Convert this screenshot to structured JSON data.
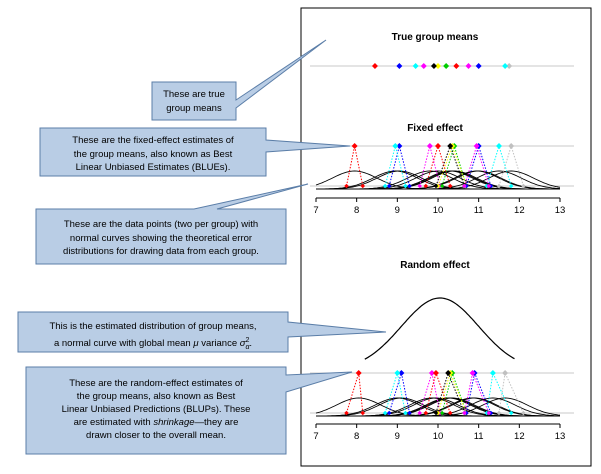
{
  "panels": {
    "true_title": "True group means",
    "fixed_title": "Fixed effect",
    "random_title": "Random effect"
  },
  "axis": {
    "min": 7,
    "max": 13,
    "ticks": [
      "7",
      "8",
      "9",
      "10",
      "11",
      "12",
      "13"
    ]
  },
  "colors": {
    "callout_fill": "#b9cde5",
    "callout_stroke": "#5b7ea8",
    "frame": "#000000",
    "baseline": "#c8c8c8"
  },
  "callouts": {
    "true_means": {
      "lines": [
        "These are true",
        "group means"
      ]
    },
    "blue": {
      "lines": [
        "These are the fixed-effect estimates of",
        "the group means, also known as Best",
        "Linear Unbiased Estimates (BLUEs)."
      ]
    },
    "data_points": {
      "lines": [
        "These are the data points (two per group) with",
        "normal curves showing the theoretical error",
        "distributions for drawing data from each group."
      ]
    },
    "global": {
      "line1": "This is the estimated distribution of group means,",
      "line2_prefix": "a normal curve with global mean ",
      "mu": "μ",
      "line2_mid": " variance ",
      "sigma": "σ",
      "sub": "α",
      "sup": "2",
      "line2_suffix": "."
    },
    "blup": {
      "line1": "These are the random-effect estimates of",
      "line2": "the group means, also known as Best",
      "line3": "Linear Unbiased Predictions (BLUPs). These",
      "line4_prefix": "are estimated with ",
      "shrinkage": "shrinkage",
      "line4_suffix": "—they are",
      "line5": "drawn closer to the overall mean."
    }
  },
  "groups": [
    {
      "color": "#ff0000",
      "true_mean": 8.45,
      "blue": 7.95,
      "blup": 8.05,
      "data": [
        7.75,
        8.15
      ]
    },
    {
      "color": "#0000ff",
      "true_mean": 9.05,
      "blue": 9.05,
      "blup": 9.1,
      "data": [
        8.8,
        9.3
      ]
    },
    {
      "color": "#00ffff",
      "true_mean": 9.45,
      "blue": 8.95,
      "blup": 9.0,
      "data": [
        8.7,
        9.2
      ]
    },
    {
      "color": "#ff00ff",
      "true_mean": 9.65,
      "blue": 9.8,
      "blup": 9.85,
      "data": [
        9.55,
        10.05
      ]
    },
    {
      "color": "#00cc00",
      "true_mean": 10.2,
      "blue": 10.4,
      "blup": 10.35,
      "data": [
        10.1,
        10.7
      ]
    },
    {
      "color": "#ffff00",
      "true_mean": 10.0,
      "blue": 10.35,
      "blup": 10.3,
      "data": [
        10.0,
        10.7
      ]
    },
    {
      "color": "#000000",
      "true_mean": 9.9,
      "blue": 10.3,
      "blup": 10.25,
      "data": [
        9.95,
        10.65
      ]
    },
    {
      "color": "#c0c0c0",
      "true_mean": 11.75,
      "blue": 11.8,
      "blup": 11.65,
      "data": [
        11.5,
        12.1
      ]
    },
    {
      "color": "#ff0000",
      "true_mean": 10.45,
      "blue": 10.0,
      "blup": 9.95,
      "data": [
        9.7,
        10.3
      ]
    },
    {
      "color": "#0000ff",
      "true_mean": 11.0,
      "blue": 11.0,
      "blup": 10.9,
      "data": [
        10.7,
        11.3
      ]
    },
    {
      "color": "#00ffff",
      "true_mean": 11.65,
      "blue": 11.5,
      "blup": 11.35,
      "data": [
        11.2,
        11.8
      ]
    },
    {
      "color": "#ff00ff",
      "true_mean": 10.75,
      "blue": 10.95,
      "blup": 10.85,
      "data": [
        10.65,
        11.25
      ]
    }
  ],
  "global_curve": {
    "mean": 10.05,
    "sd": 0.95
  },
  "error_sd": 0.55
}
